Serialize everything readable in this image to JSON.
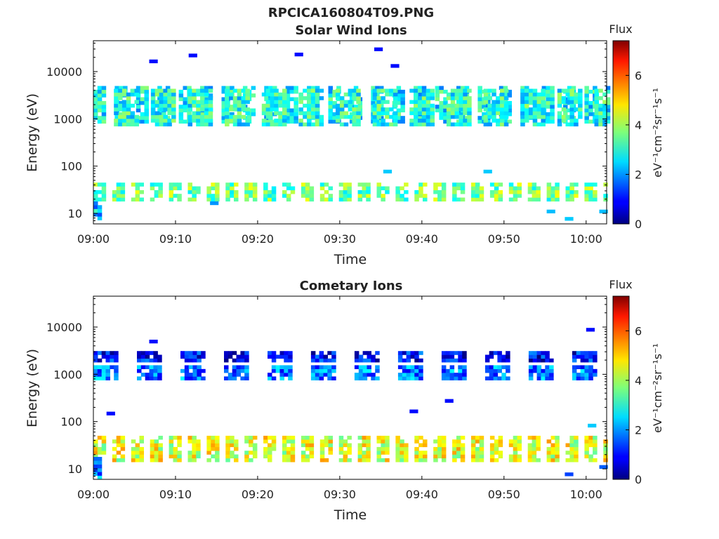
{
  "figure": {
    "title": "RPCICA160804T09.PNG"
  },
  "colorbar": {
    "label": "Flux",
    "unit_label": "eV⁻¹cm⁻²sr⁻¹s⁻¹",
    "range": [
      0,
      7.4
    ],
    "ticks": [
      "0",
      "2",
      "4",
      "6"
    ],
    "colormap": "jet"
  },
  "chart_data": [
    {
      "type": "heatmap",
      "title": "Solar Wind Ions",
      "xlabel": "Time",
      "ylabel": "Energy (eV)",
      "x_range_minutes_after_0900": [
        0,
        62.5
      ],
      "x_ticks": [
        "09:00",
        "09:10",
        "09:20",
        "09:30",
        "09:40",
        "09:50",
        "10:00"
      ],
      "y_scale": "log",
      "y_range_eV": [
        6,
        45000
      ],
      "y_ticks": [
        "10",
        "100",
        "1000",
        "10000"
      ],
      "bands": [
        {
          "t0": 0,
          "t1": 1.5,
          "e0": 800,
          "e1": 4200,
          "level": 2.8,
          "step": 1.5,
          "gap": 0.6
        },
        {
          "t0": 2.5,
          "t1": 4,
          "e0": 700,
          "e1": 4200,
          "level": 3.0,
          "step": 3.0,
          "gap": 1.0
        },
        {
          "t0": 0,
          "t1": 62.5,
          "e0": 18,
          "e1": 42,
          "level": 3.6,
          "step": 1.5,
          "gap": 0.3
        },
        {
          "t0": 0,
          "t1": 1,
          "e0": 6,
          "e1": 16,
          "level": 2.3,
          "step": 1,
          "gap": 0
        }
      ],
      "isolated": [
        {
          "t": 6.8,
          "e": 15000,
          "level": 1.0
        },
        {
          "t": 11.6,
          "e": 20000,
          "level": 1.0
        },
        {
          "t": 24.5,
          "e": 21000,
          "level": 1.0
        },
        {
          "t": 34.2,
          "e": 27000,
          "level": 1.0
        },
        {
          "t": 36.2,
          "e": 12000,
          "level": 1.0
        },
        {
          "t": 14.2,
          "e": 15,
          "level": 2.0
        },
        {
          "t": 55.2,
          "e": 10,
          "level": 2.3
        },
        {
          "t": 57.4,
          "e": 7,
          "level": 2.4
        },
        {
          "t": 61.6,
          "e": 10,
          "level": 2.3
        },
        {
          "t": 35.3,
          "e": 70,
          "level": 2.4
        },
        {
          "t": 47.5,
          "e": 70,
          "level": 2.4
        }
      ]
    },
    {
      "type": "heatmap",
      "title": "Cometary Ions",
      "xlabel": "Time",
      "ylabel": "Energy (eV)",
      "x_range_minutes_after_0900": [
        0,
        62.5
      ],
      "x_ticks": [
        "09:00",
        "09:10",
        "09:20",
        "09:30",
        "09:40",
        "09:50",
        "10:00"
      ],
      "y_scale": "log",
      "y_range_eV": [
        6,
        45000
      ],
      "y_ticks": [
        "10",
        "100",
        "1000",
        "10000"
      ],
      "bands": [
        {
          "t0": 0,
          "t1": 1,
          "e0": 1800,
          "e1": 3100,
          "level": 1.0,
          "step": 3.0,
          "gap": 1.8
        },
        {
          "t0": 0,
          "t1": 1,
          "e0": 750,
          "e1": 1300,
          "level": 1.8,
          "step": 3.0,
          "gap": 1.8
        },
        {
          "t0": 0,
          "t1": 62.5,
          "e0": 14,
          "e1": 48,
          "level": 4.4,
          "step": 1.5,
          "gap": 0.3
        },
        {
          "t0": 0,
          "t1": 1,
          "e0": 6,
          "e1": 16,
          "level": 2.0,
          "step": 1,
          "gap": 0
        }
      ],
      "isolated": [
        {
          "t": 6.8,
          "e": 4500,
          "level": 1.0
        },
        {
          "t": 60.0,
          "e": 8000,
          "level": 1.0
        },
        {
          "t": 57.4,
          "e": 7,
          "level": 1.4
        },
        {
          "t": 61.6,
          "e": 10,
          "level": 1.6
        },
        {
          "t": 1.6,
          "e": 135,
          "level": 1.0
        },
        {
          "t": 38.5,
          "e": 150,
          "level": 1.0
        },
        {
          "t": 42.8,
          "e": 250,
          "level": 1.0
        },
        {
          "t": 60.2,
          "e": 75,
          "level": 2.4
        }
      ]
    }
  ]
}
